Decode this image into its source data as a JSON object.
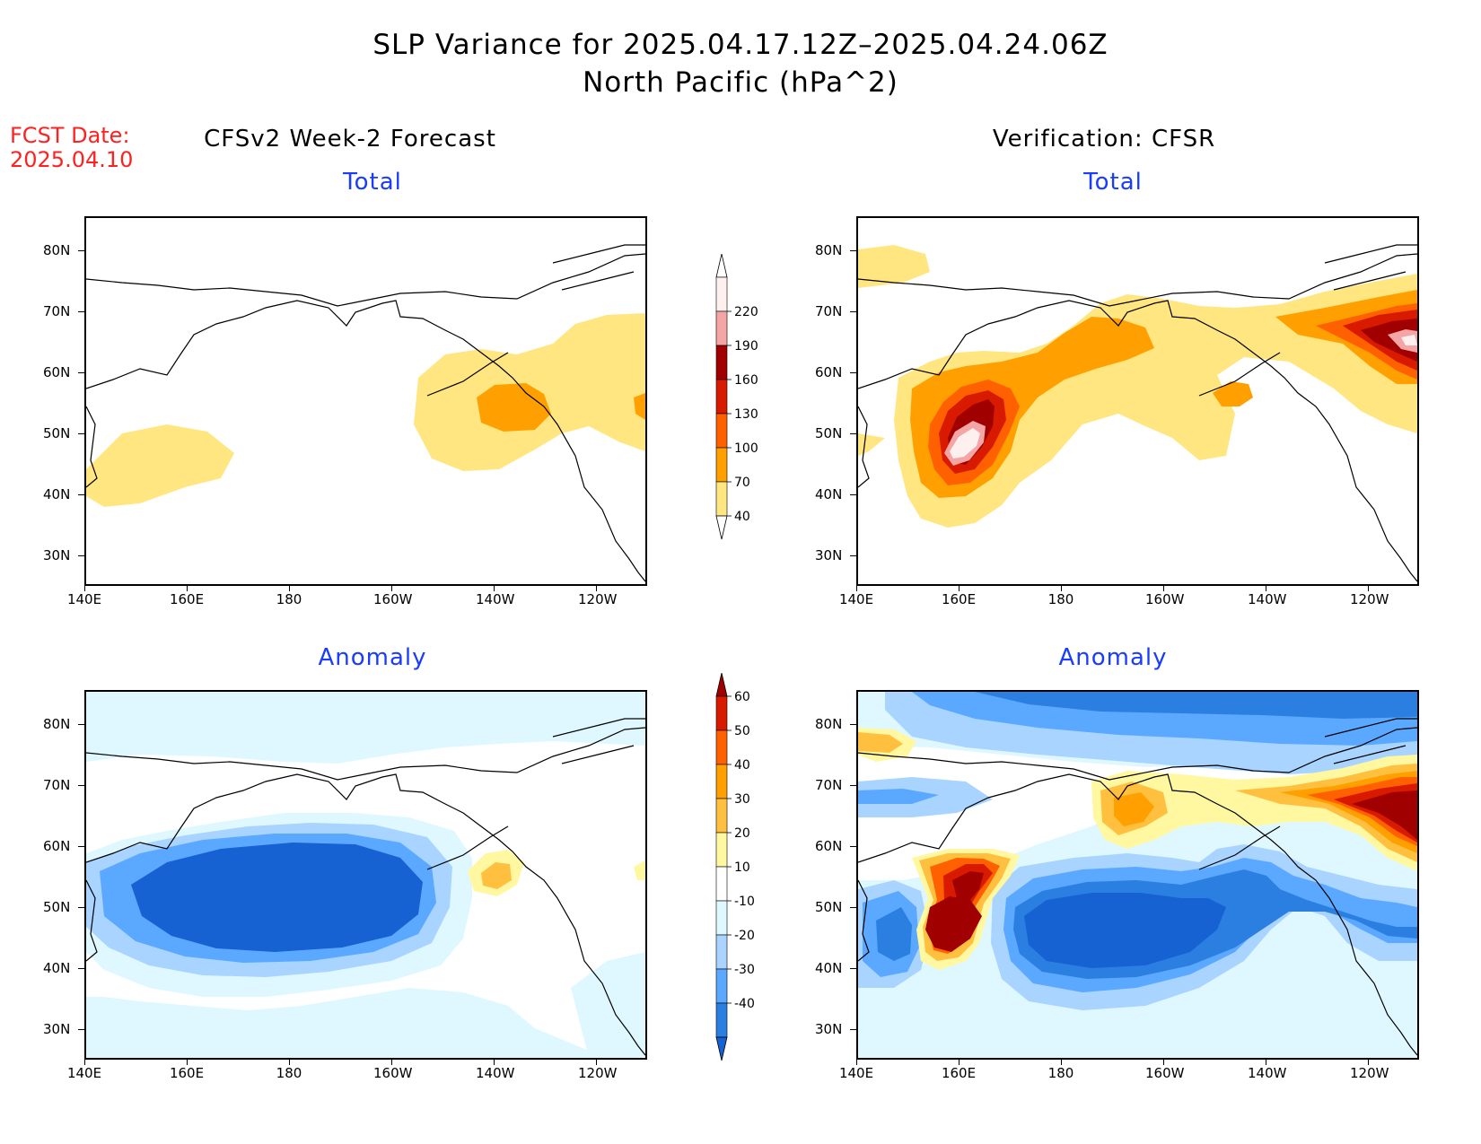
{
  "title": {
    "line1": "SLP Variance for 2025.04.17.12Z–2025.04.24.06Z",
    "line2": "North Pacific (hPa^2)"
  },
  "forecast_date": {
    "label": "FCST Date:",
    "value": "2025.04.10"
  },
  "columns": [
    {
      "heading": "CFSv2 Week-2 Forecast"
    },
    {
      "heading": "Verification: CFSR"
    }
  ],
  "panels": [
    {
      "id": "fcst-total",
      "title": "Total"
    },
    {
      "id": "cfsr-total",
      "title": "Total"
    },
    {
      "id": "fcst-anomaly",
      "title": "Anomaly"
    },
    {
      "id": "cfsr-anomaly",
      "title": "Anomaly"
    }
  ],
  "axes": {
    "lat_ticks": [
      "80N",
      "70N",
      "60N",
      "50N",
      "40N",
      "30N"
    ],
    "lon_ticks": [
      "140E",
      "160E",
      "180",
      "160W",
      "140W",
      "120W"
    ]
  },
  "colorbars": {
    "total": {
      "levels": [
        "220",
        "190",
        "160",
        "130",
        "100",
        "70",
        "40"
      ],
      "colors": [
        "#fff0f0",
        "#f4a6a6",
        "#a00000",
        "#d81a00",
        "#ff6000",
        "#ffa000",
        "#ffe680"
      ]
    },
    "anomaly": {
      "levels": [
        "60",
        "50",
        "40",
        "30",
        "20",
        "10",
        "-10",
        "-20",
        "-30",
        "-40"
      ],
      "colors": [
        "#a00000",
        "#d81a00",
        "#ff6000",
        "#ffa000",
        "#ffc040",
        "#fff8a0",
        "#ffffff",
        "#dff8ff",
        "#a8d4ff",
        "#5aa8ff",
        "#2b7fe0",
        "#1662d2"
      ]
    }
  }
}
